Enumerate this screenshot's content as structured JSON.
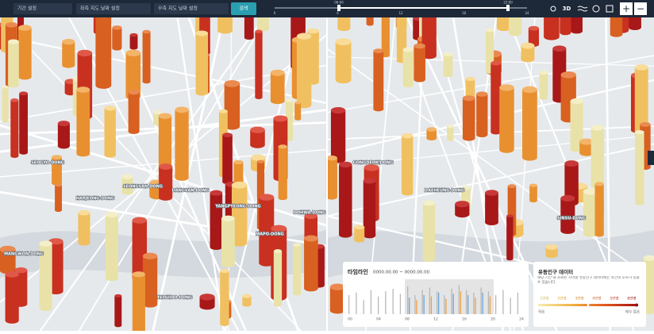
{
  "toolbar": {
    "period": "기간 설정",
    "left_date": "좌측 지도 날짜 설정",
    "right_date": "우측 지도 날짜 설정",
    "search": "검색",
    "slider_start": "06:00",
    "slider_end": "22:00",
    "slider_ticks": [
      "0",
      "6",
      "12",
      "18",
      "24"
    ],
    "mode": "3D",
    "zoom_in": "+",
    "zoom_out": "−"
  },
  "map_labels": [
    "SEOGYO-DONG",
    "HAPJEONG-DONG",
    "MANGWON-DONG",
    "SEONGSAN-DONG",
    "DANGSAN-DONG",
    "YANGPYEONG-DONG",
    "YEOUIDO-DONG",
    "MAPO-DONG",
    "DOHWA-DONG",
    "GONGDEOK-DONG",
    "DAEHEUNG-DONG",
    "SINSU-DONG"
  ],
  "timeline": {
    "title": "타임라인",
    "range": "0000.00.00 ~ 0000.00.00",
    "ticks": [
      "00",
      "04",
      "08",
      "12",
      "16",
      "20",
      "24"
    ],
    "gray": [
      30,
      34,
      22,
      38,
      28,
      36,
      40,
      32,
      44,
      30,
      38,
      42,
      36,
      30,
      40,
      46,
      38,
      34,
      42,
      36,
      30,
      38,
      26,
      34
    ],
    "color": [
      null,
      null,
      null,
      null,
      null,
      null,
      null,
      null,
      26,
      22,
      30,
      28,
      34,
      24,
      32,
      36,
      30,
      26,
      34,
      28,
      null,
      null,
      null,
      null
    ]
  },
  "legend": {
    "title": "유동인구 데이터",
    "description": "해당 기간 내 조회된 지역별 유동인구 데이터에는 약간의 오차가 있을 수 있습니다.",
    "labels": [
      "1만명",
      "2만명",
      "3만명",
      "4만명",
      "5만명",
      "6만명"
    ],
    "low": "적음",
    "high": "매우 많음"
  }
}
